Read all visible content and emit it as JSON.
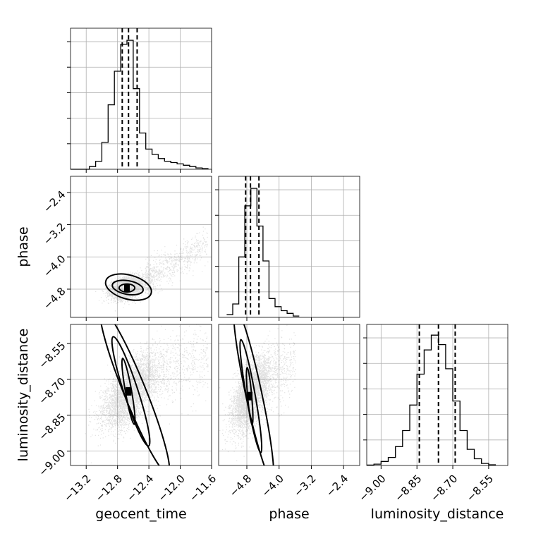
{
  "chart_data": {
    "type": "corner",
    "parameters": [
      "geocent_time",
      "phase",
      "luminosity_distance"
    ],
    "colors": {
      "points": "#000000",
      "line": "#000000",
      "grid": "#b0b0b0"
    },
    "grid": true,
    "panels": [
      {
        "id": "hist_geocent_time",
        "type": "histogram",
        "xlim": [
          -13.4,
          -11.6
        ],
        "bin_edges": [
          -13.4,
          -13.32,
          -13.24,
          -13.16,
          -13.08,
          -13.0,
          -12.92,
          -12.84,
          -12.76,
          -12.68,
          -12.6,
          -12.52,
          -12.44,
          -12.36,
          -12.28,
          -12.2,
          -12.12,
          -12.04,
          -11.96,
          -11.88,
          -11.8,
          -11.72,
          -11.64
        ],
        "counts": [
          0,
          0,
          0,
          0.02,
          0.06,
          0.2,
          0.48,
          0.73,
          0.93,
          0.96,
          0.6,
          0.27,
          0.15,
          0.11,
          0.08,
          0.06,
          0.05,
          0.04,
          0.03,
          0.02,
          0.01,
          0.005
        ],
        "quantiles": [
          -12.74,
          -12.66,
          -12.55
        ]
      },
      {
        "id": "hist_phase",
        "type": "histogram",
        "xlim": [
          -5.5,
          -2.0
        ],
        "bin_edges": [
          -5.3,
          -5.15,
          -5.0,
          -4.85,
          -4.7,
          -4.55,
          -4.4,
          -4.25,
          -4.1,
          -3.95,
          -3.8,
          -3.65,
          -3.5
        ],
        "counts": [
          0.02,
          0.1,
          0.45,
          0.83,
          0.96,
          0.68,
          0.42,
          0.14,
          0.08,
          0.05,
          0.03,
          0.01
        ],
        "quantiles": [
          -4.83,
          -4.71,
          -4.5
        ]
      },
      {
        "id": "hist_luminosity_distance",
        "type": "histogram",
        "xlim": [
          -9.06,
          -8.47
        ],
        "bin_edges": [
          -9.06,
          -9.03,
          -9.0,
          -8.97,
          -8.94,
          -8.91,
          -8.88,
          -8.85,
          -8.82,
          -8.79,
          -8.76,
          -8.73,
          -8.7,
          -8.67,
          -8.64,
          -8.61,
          -8.58,
          -8.55,
          -8.52
        ],
        "counts": [
          0.003,
          0.01,
          0.03,
          0.06,
          0.14,
          0.26,
          0.45,
          0.68,
          0.86,
          0.97,
          0.9,
          0.72,
          0.48,
          0.26,
          0.12,
          0.05,
          0.015,
          0.005
        ],
        "quantiles": [
          -8.84,
          -8.76,
          -8.69
        ]
      },
      {
        "id": "scatter_phase_vs_geocent_time",
        "type": "scatter_contour",
        "xlim": [
          -13.4,
          -11.6
        ],
        "ylim": [
          -5.5,
          -2.0
        ],
        "samples": {
          "count": 4500,
          "main": {
            "mean": [
              -12.68,
              -4.75
            ],
            "sd": [
              0.1,
              0.13
            ],
            "corr": 0.3,
            "fraction": 0.85
          },
          "tail": {
            "x_range": [
              -12.45,
              -11.65
            ],
            "y_start": -4.55,
            "slope": 1.1,
            "y_sd": 0.2,
            "fraction": 0.15
          }
        },
        "contours": [
          {
            "level": 1,
            "center": [
              -12.66,
              -4.75
            ],
            "radii": [
              0.3,
              0.3
            ],
            "angle": 15
          },
          {
            "level": 2,
            "center": [
              -12.67,
              -4.76
            ],
            "radii": [
              0.2,
              0.17
            ],
            "angle": 10
          },
          {
            "level": 3,
            "center": [
              -12.68,
              -4.77
            ],
            "radii": [
              0.1,
              0.1
            ],
            "angle": 0
          }
        ]
      },
      {
        "id": "scatter_luminosity_distance_vs_geocent_time",
        "type": "scatter_contour",
        "xlim": [
          -13.4,
          -11.6
        ],
        "ylim": [
          -9.06,
          -8.47
        ],
        "samples": {
          "count": 4500,
          "main": {
            "mean": [
              -12.65,
              -8.75
            ],
            "sd": [
              0.17,
              0.075
            ],
            "corr": 0.6,
            "fraction": 0.85
          },
          "tail": {
            "x_range": [
              -12.45,
              -11.65
            ],
            "y_start": -8.7,
            "slope": 0.12,
            "y_sd": 0.07,
            "fraction": 0.15
          }
        },
        "contours": [
          {
            "level": 1,
            "center": [
              -12.58,
              -8.75
            ],
            "radii": [
              0.14,
              0.37
            ],
            "angle": -22
          },
          {
            "level": 2,
            "center": [
              -12.63,
              -8.75
            ],
            "radii": [
              0.09,
              0.24
            ],
            "angle": -18
          },
          {
            "level": 3,
            "center": [
              -12.66,
              -8.75
            ],
            "radii": [
              0.04,
              0.14
            ],
            "angle": -10
          }
        ]
      },
      {
        "id": "scatter_luminosity_distance_vs_phase",
        "type": "scatter_contour",
        "xlim": [
          -5.5,
          -2.0
        ],
        "ylim": [
          -9.06,
          -8.47
        ],
        "samples": {
          "count": 4500,
          "main": {
            "mean": [
              -4.73,
              -8.76
            ],
            "sd": [
              0.22,
              0.075
            ],
            "corr": 0.55,
            "fraction": 0.9
          },
          "tail": {
            "x_range": [
              -4.4,
              -3.6
            ],
            "y_start": -8.7,
            "slope": 0.1,
            "y_sd": 0.07,
            "fraction": 0.1
          }
        },
        "contours": [
          {
            "level": 1,
            "center": [
              -4.63,
              -8.76
            ],
            "radii": [
              0.2,
              0.37
            ],
            "angle": -12
          },
          {
            "level": 2,
            "center": [
              -4.7,
              -8.77
            ],
            "radii": [
              0.11,
              0.24
            ],
            "angle": -10
          },
          {
            "level": 3,
            "center": [
              -4.73,
              -8.77
            ],
            "radii": [
              0.05,
              0.12
            ],
            "angle": -5
          }
        ]
      }
    ],
    "ticks": {
      "geocent_time": [
        "−13.2",
        "−12.8",
        "−12.4",
        "−12.0",
        "−11.6"
      ],
      "phase": [
        "−4.8",
        "−4.0",
        "−3.2",
        "−2.4"
      ],
      "phase_y": [
        "−2.4",
        "−3.2",
        "−4.0",
        "−4.8"
      ],
      "luminosity_distance": [
        "−9.00",
        "−8.85",
        "−8.70",
        "−8.55"
      ],
      "luminosity_distance_y": [
        "−8.55",
        "−8.70",
        "−8.85",
        "−9.00"
      ]
    },
    "tick_values": {
      "geocent_time": [
        -13.2,
        -12.8,
        -12.4,
        -12.0,
        -11.6
      ],
      "phase": [
        -4.8,
        -4.0,
        -3.2,
        -2.4
      ],
      "luminosity_distance": [
        -9.0,
        -8.85,
        -8.7,
        -8.55
      ]
    },
    "labels": {
      "x": [
        "geocent_time",
        "phase",
        "luminosity_distance"
      ],
      "y": [
        "phase",
        "luminosity_distance"
      ]
    }
  }
}
